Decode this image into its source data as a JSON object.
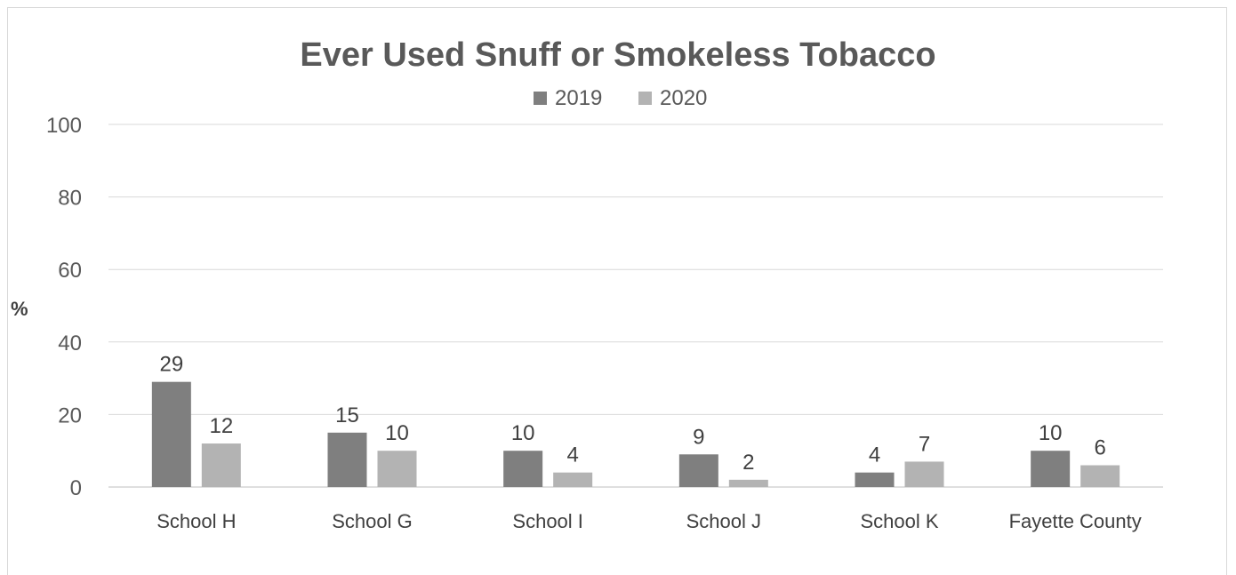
{
  "chart_data": {
    "type": "bar",
    "title": "Ever Used Snuff or Smokeless Tobacco",
    "ylabel": "%",
    "xlabel": "",
    "ylim": [
      0,
      100
    ],
    "yticks": [
      0,
      20,
      40,
      60,
      80,
      100
    ],
    "grid": true,
    "legend_position": "top",
    "categories": [
      "School H",
      "School G",
      "School I",
      "School J",
      "School K",
      "Fayette County"
    ],
    "series": [
      {
        "name": "2019",
        "color": "#7f7f7f",
        "values": [
          29,
          15,
          10,
          9,
          4,
          10
        ],
        "value_labels": [
          "29",
          "15",
          "10",
          "9",
          "4",
          "10"
        ]
      },
      {
        "name": "2020",
        "color": "#b3b3b3",
        "values": [
          12,
          10,
          4,
          2,
          7,
          6
        ],
        "value_labels": [
          "12",
          "10",
          "4",
          "2",
          "7",
          "6"
        ]
      }
    ]
  }
}
